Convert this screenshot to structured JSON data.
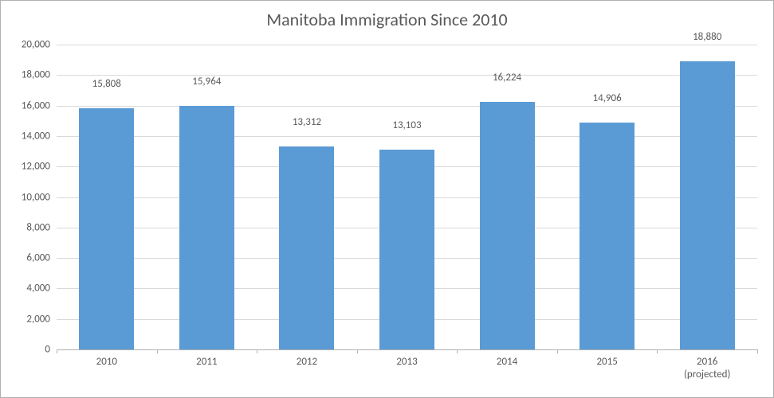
{
  "chart": {
    "type": "bar",
    "title": "Manitoba Immigration Since 2010",
    "title_fontsize": 22,
    "title_color": "#595959",
    "categories": [
      "2010",
      "2011",
      "2012",
      "2013",
      "2014",
      "2015",
      "2016\n(projected)"
    ],
    "values": [
      15808,
      15964,
      13312,
      13103,
      16224,
      14906,
      18880
    ],
    "value_labels": [
      "15,808",
      "15,964",
      "13,312",
      "13,103",
      "16,224",
      "14,906",
      "18,880"
    ],
    "bar_color": "#5b9bd5",
    "bar_width_ratio": 0.55,
    "ylim": [
      0,
      20000
    ],
    "ytick_step": 2000,
    "ytick_labels": [
      "0",
      "2,000",
      "4,000",
      "6,000",
      "8,000",
      "10,000",
      "12,000",
      "14,000",
      "16,000",
      "18,000",
      "20,000"
    ],
    "background_color": "#ffffff",
    "grid_color": "#d9d9d9",
    "axis_line_color": "#b0b0b0",
    "tick_label_fontsize": 13,
    "tick_label_color": "#595959",
    "data_label_fontsize": 13,
    "data_label_color": "#595959",
    "outer_border_color": "#b0b0b0"
  }
}
